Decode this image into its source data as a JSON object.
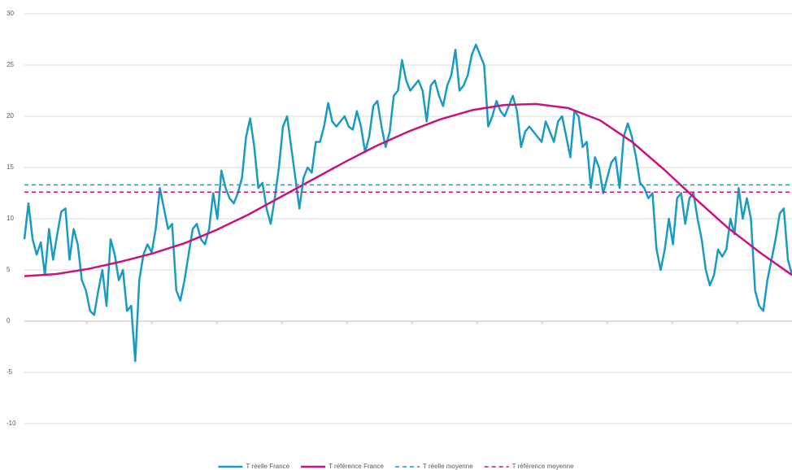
{
  "chart_data": {
    "type": "line",
    "ylim": [
      -10,
      30
    ],
    "yticks": [
      -10,
      -5,
      0,
      5,
      10,
      15,
      20,
      25,
      30
    ],
    "grid": true,
    "legend": "bottom",
    "series": [
      {
        "name": "T réelle France",
        "color": "#1a9bc1",
        "style": "solid",
        "width": 2.5,
        "values": [
          8,
          11.5,
          8,
          6.5,
          7.7,
          4.5,
          9,
          6,
          8.5,
          10.7,
          11,
          6,
          9,
          7.5,
          4,
          3,
          1,
          0.6,
          3,
          5,
          1.5,
          8,
          6.5,
          4,
          5,
          1,
          1.5,
          -3.9,
          4,
          6.5,
          7.5,
          6.7,
          9,
          13,
          11,
          9,
          9.5,
          3,
          2,
          4,
          6.5,
          9,
          9.5,
          8,
          7.5,
          9,
          12.5,
          10,
          14.7,
          13,
          12,
          11.5,
          12.5,
          14,
          18,
          19.8,
          17,
          13,
          13.5,
          11,
          9.5,
          12,
          15,
          19,
          20,
          17,
          14,
          11,
          14,
          15,
          14.5,
          17.5,
          17.5,
          19,
          21.3,
          19.5,
          19,
          19.5,
          20,
          19,
          18.7,
          20.5,
          19,
          16.5,
          18,
          21,
          21.5,
          19,
          17,
          18.5,
          22,
          22.5,
          25.5,
          23.5,
          22.5,
          23,
          23.5,
          22.5,
          19.5,
          23,
          23.5,
          22,
          21,
          23,
          24,
          26.5,
          22.5,
          23,
          24,
          26,
          27,
          26,
          25,
          19,
          20,
          21.5,
          20.5,
          20,
          21,
          22,
          20.5,
          17,
          18.5,
          19,
          18.5,
          18,
          17.5,
          19.5,
          18.5,
          17.5,
          19.5,
          20,
          18,
          16,
          20.5,
          20,
          17,
          17.5,
          13,
          16,
          15,
          12.5,
          14,
          15.5,
          16,
          13,
          18,
          19.3,
          18,
          16,
          13.5,
          13,
          12,
          12.5,
          7,
          5,
          7,
          10,
          7.5,
          12,
          12.5,
          9.5,
          12,
          12.5,
          10,
          8,
          5,
          3.5,
          4.5,
          7,
          6.3,
          7,
          10,
          8.5,
          13,
          10,
          12,
          10,
          3,
          1.5,
          1,
          4,
          6,
          8,
          10.5,
          11,
          6,
          4.5
        ]
      },
      {
        "name": "T référence France",
        "color": "#c8137f",
        "style": "solid",
        "width": 2.5,
        "values": [
          4.4,
          4.6,
          5.1,
          5.8,
          6.6,
          7.6,
          8.9,
          10.4,
          12.1,
          13.8,
          15.5,
          17.1,
          18.5,
          19.7,
          20.6,
          21.1,
          21.2,
          20.8,
          19.6,
          17.5,
          14.8,
          11.9,
          9.1,
          6.7,
          4.5
        ]
      },
      {
        "name": "T réelle moyenne",
        "color": "#1a9bc1",
        "style": "dashed",
        "width": 1.5,
        "values": [
          13.3,
          13.3
        ]
      },
      {
        "name": "T référence moyenne",
        "color": "#c8137f",
        "style": "dashed",
        "width": 1.5,
        "values": [
          12.6,
          12.6
        ]
      }
    ]
  }
}
